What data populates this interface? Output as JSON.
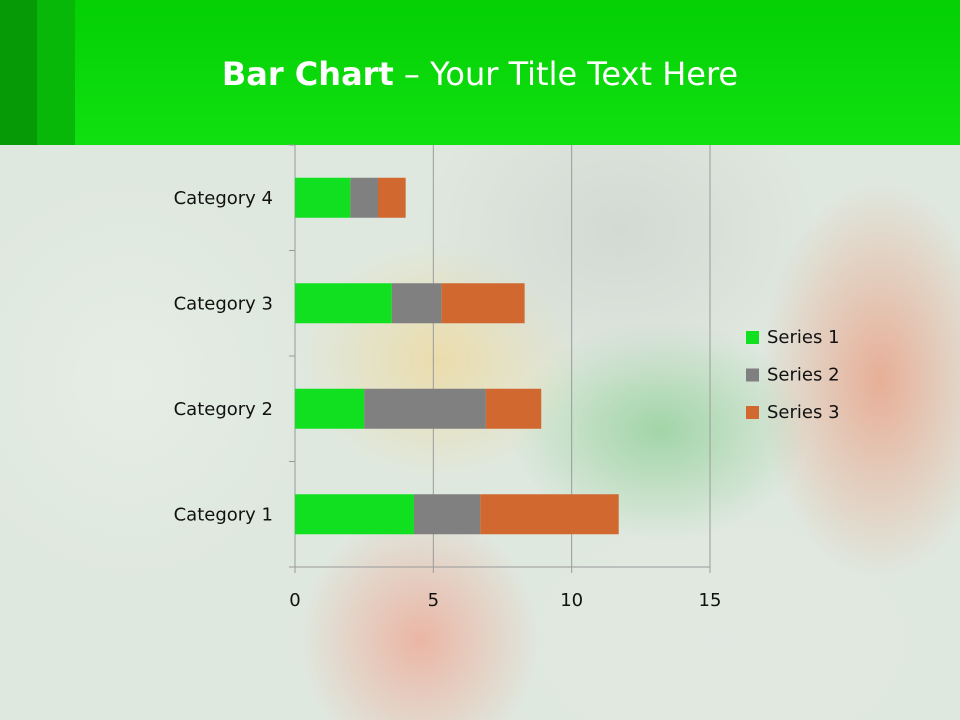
{
  "slide": {
    "title_bold": "Bar Chart",
    "title_rest": " – Your Title Text Here"
  },
  "chart_data": {
    "type": "bar",
    "orientation": "horizontal",
    "stacked": true,
    "categories": [
      "Category 1",
      "Category 2",
      "Category 3",
      "Category 4"
    ],
    "series": [
      {
        "name": "Series 1",
        "values": [
          4.3,
          2.5,
          3.5,
          2
        ],
        "color": "#10e020"
      },
      {
        "name": "Series 2",
        "values": [
          2.4,
          4.4,
          1.8,
          1
        ],
        "color": "#808080"
      },
      {
        "name": "Series 3",
        "values": [
          5,
          2,
          3,
          1
        ],
        "color": "#d06830"
      }
    ],
    "xlim": [
      0,
      15
    ],
    "xticks": [
      "0",
      "5",
      "10",
      "15"
    ],
    "grid": true,
    "legend": "right"
  }
}
